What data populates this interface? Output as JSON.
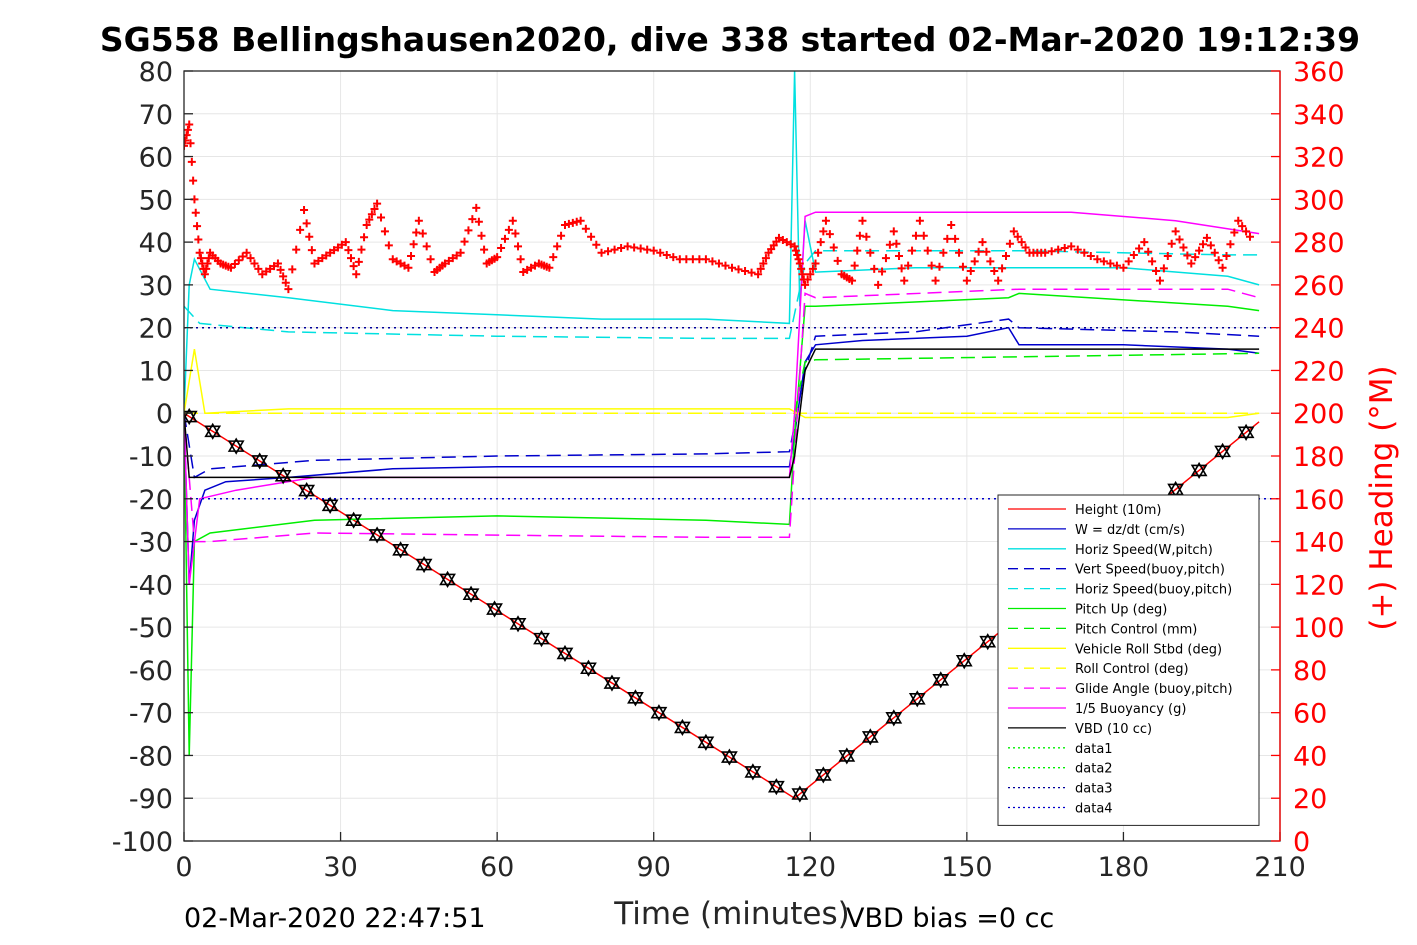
{
  "chart_data": {
    "type": "line",
    "title": "SG558 Bellingshausen2020, dive 338 started 02-Mar-2020 19:12:39",
    "xlabel": "Time (minutes)",
    "ylabel": "",
    "y2label": "(+) Heading (°M)",
    "xlim": [
      0,
      210
    ],
    "ylim": [
      -100,
      80
    ],
    "y2lim": [
      0,
      360
    ],
    "xticks": [
      "0",
      "30",
      "60",
      "90",
      "120",
      "150",
      "180",
      "210"
    ],
    "yticks": [
      "80",
      "70",
      "60",
      "50",
      "40",
      "30",
      "20",
      "10",
      "0",
      "-10",
      "-20",
      "-30",
      "-40",
      "-50",
      "-60",
      "-70",
      "-80",
      "-90",
      "-100"
    ],
    "y2ticks": [
      "360",
      "340",
      "320",
      "300",
      "280",
      "260",
      "240",
      "220",
      "200",
      "180",
      "160",
      "140",
      "120",
      "100",
      "80",
      "60",
      "40",
      "20",
      "0"
    ],
    "grid": true,
    "legend_position": "bottom-right",
    "footer_left": "02-Mar-2020 22:47:51",
    "footer_right": "VBD bias =0 cc",
    "heading_color": "#ff0000",
    "series": [
      {
        "name": "Height (10m)",
        "color": "#ff0000",
        "style": "solid",
        "x": [
          0,
          117,
          206
        ],
        "y": [
          0,
          -90,
          -2
        ]
      },
      {
        "name": "W = dz/dt (cm/s)",
        "color": "#0000cc",
        "style": "solid",
        "x": [
          0,
          1,
          2,
          4,
          8,
          20,
          40,
          60,
          80,
          100,
          116,
          117,
          119,
          121,
          130,
          150,
          158,
          160,
          180,
          200,
          206
        ],
        "y": [
          0,
          -40,
          -25,
          -18,
          -16,
          -15,
          -13,
          -12.5,
          -12.5,
          -12.5,
          -12.5,
          -5,
          12,
          16,
          17,
          18,
          20,
          16,
          16,
          15,
          14
        ]
      },
      {
        "name": "Horiz Speed(W,pitch)",
        "color": "#00e0e0",
        "style": "solid",
        "x": [
          0,
          1,
          2,
          5,
          20,
          40,
          60,
          80,
          100,
          116,
          117,
          118,
          119,
          121,
          140,
          160,
          180,
          200,
          206
        ],
        "y": [
          0,
          30,
          36,
          29,
          27,
          24,
          23,
          22,
          22,
          21,
          80,
          25,
          45,
          33,
          34,
          34,
          34,
          32,
          30
        ]
      },
      {
        "name": "Vert Speed(buoy,pitch)",
        "color": "#0000cc",
        "style": "dashed",
        "x": [
          0,
          2,
          5,
          25,
          60,
          100,
          116,
          119,
          121,
          140,
          158,
          160,
          190,
          206
        ],
        "y": [
          0,
          -15,
          -13,
          -11,
          -10,
          -9.5,
          -9,
          10,
          18,
          19,
          22,
          20,
          19,
          18
        ]
      },
      {
        "name": "Horiz Speed(buoy,pitch)",
        "color": "#00e0e0",
        "style": "dashed",
        "x": [
          0,
          3,
          20,
          60,
          100,
          116,
          119,
          121,
          160,
          200,
          206
        ],
        "y": [
          25,
          21,
          19,
          18,
          17.5,
          17.5,
          35,
          38,
          38,
          37,
          37
        ]
      },
      {
        "name": "Pitch Up (deg)",
        "color": "#00ee00",
        "style": "solid",
        "x": [
          0,
          1,
          2,
          5,
          25,
          60,
          100,
          116,
          117,
          119,
          121,
          140,
          158,
          160,
          200,
          206
        ],
        "y": [
          0,
          -80,
          -30,
          -28,
          -25,
          -24,
          -25,
          -26,
          -5,
          25,
          25,
          26,
          27,
          28,
          25,
          24
        ]
      },
      {
        "name": "Pitch Control (mm)",
        "color": "#00ee00",
        "style": "dashed",
        "x": [
          0,
          117,
          119,
          121,
          206
        ],
        "y": [
          0,
          0,
          12,
          12.5,
          14
        ]
      },
      {
        "name": "Vehicle Roll Stbd (deg)",
        "color": "#ffff00",
        "style": "solid",
        "x": [
          0,
          2,
          4,
          20,
          60,
          100,
          116,
          119,
          121,
          160,
          200,
          206
        ],
        "y": [
          0,
          15,
          0,
          1,
          1,
          1,
          1,
          -1,
          -1,
          -1,
          -1,
          0
        ]
      },
      {
        "name": "Roll Control (deg)",
        "color": "#ffff00",
        "style": "dashed",
        "x": [
          0,
          206
        ],
        "y": [
          0,
          0
        ]
      },
      {
        "name": "Glide Angle (buoy,pitch)",
        "color": "#ff00ff",
        "style": "dashed",
        "x": [
          0,
          2,
          5,
          25,
          60,
          100,
          116,
          119,
          121,
          160,
          200,
          206
        ],
        "y": [
          0,
          -30,
          -30,
          -28,
          -28.5,
          -29,
          -29,
          28,
          27,
          29,
          29,
          27
        ]
      },
      {
        "name": "1/5 Buoyancy (g)",
        "color": "#ff00ff",
        "style": "solid",
        "x": [
          0,
          1,
          3,
          10,
          25,
          60,
          116,
          117,
          119,
          121,
          140,
          170,
          190,
          206
        ],
        "y": [
          0,
          -40,
          -20,
          -18,
          -15,
          -15,
          -15,
          0,
          46,
          47,
          47,
          47,
          45,
          42
        ]
      },
      {
        "name": "VBD (10 cc)",
        "color": "#000000",
        "style": "solid",
        "x": [
          0,
          1,
          2,
          3,
          25,
          60,
          116,
          117,
          119,
          121,
          206
        ],
        "y": [
          0,
          -15,
          -15,
          -15,
          -15,
          -15,
          -15,
          -10,
          10,
          15,
          15
        ]
      },
      {
        "name": "data1",
        "color": "#00ee00",
        "style": "dotted",
        "x": [],
        "y": []
      },
      {
        "name": "data2",
        "color": "#00ee00",
        "style": "dotted",
        "x": [],
        "y": []
      },
      {
        "name": "data3",
        "color": "#000099",
        "style": "dotted",
        "x": [
          0,
          210
        ],
        "y": [
          20,
          20
        ]
      },
      {
        "name": "data4",
        "color": "#0000cc",
        "style": "dotted",
        "x": [
          0,
          210
        ],
        "y": [
          -20,
          -20
        ]
      }
    ],
    "heading": {
      "axis": "right",
      "color": "#ff0000",
      "marker": "+",
      "x": [
        0,
        1,
        2,
        3,
        4,
        5,
        7,
        9,
        12,
        15,
        18,
        20,
        23,
        25,
        28,
        31,
        33,
        35,
        37,
        40,
        43,
        45,
        48,
        50,
        53,
        56,
        58,
        60,
        63,
        65,
        68,
        70,
        73,
        76,
        80,
        85,
        90,
        95,
        100,
        105,
        110,
        112,
        114,
        117,
        118,
        119,
        121,
        123,
        126,
        128,
        130,
        133,
        136,
        138,
        141,
        144,
        147,
        150,
        153,
        156,
        159,
        162,
        165,
        170,
        175,
        180,
        184,
        187,
        190,
        193,
        196,
        199,
        202,
        205
      ],
      "y": [
        325,
        335,
        300,
        275,
        265,
        275,
        270,
        268,
        275,
        265,
        270,
        258,
        295,
        270,
        275,
        280,
        265,
        288,
        298,
        272,
        268,
        290,
        266,
        270,
        275,
        296,
        270,
        273,
        290,
        266,
        270,
        268,
        288,
        290,
        275,
        278,
        276,
        272,
        272,
        268,
        265,
        275,
        282,
        278,
        270,
        260,
        270,
        290,
        265,
        262,
        290,
        260,
        285,
        262,
        290,
        262,
        288,
        262,
        280,
        262,
        285,
        275,
        275,
        278,
        272,
        268,
        280,
        262,
        285,
        270,
        282,
        268,
        290,
        280
      ]
    }
  }
}
